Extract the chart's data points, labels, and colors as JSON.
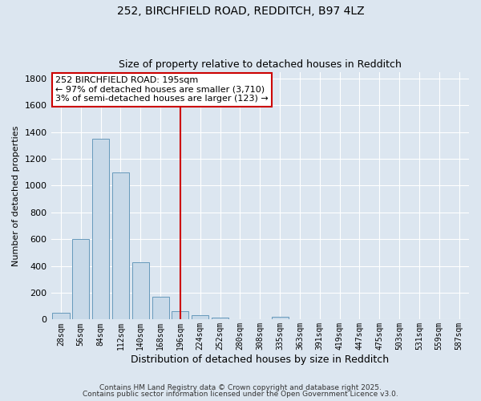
{
  "title1": "252, BIRCHFIELD ROAD, REDDITCH, B97 4LZ",
  "title2": "Size of property relative to detached houses in Redditch",
  "xlabel": "Distribution of detached houses by size in Redditch",
  "ylabel": "Number of detached properties",
  "annotation_line1": "252 BIRCHFIELD ROAD: 195sqm",
  "annotation_line2": "← 97% of detached houses are smaller (3,710)",
  "annotation_line3": "3% of semi-detached houses are larger (123) →",
  "footer1": "Contains HM Land Registry data © Crown copyright and database right 2025.",
  "footer2": "Contains public sector information licensed under the Open Government Licence v3.0.",
  "bins": [
    "28sqm",
    "56sqm",
    "84sqm",
    "112sqm",
    "140sqm",
    "168sqm",
    "196sqm",
    "224sqm",
    "252sqm",
    "280sqm",
    "308sqm",
    "335sqm",
    "363sqm",
    "391sqm",
    "419sqm",
    "447sqm",
    "475sqm",
    "503sqm",
    "531sqm",
    "559sqm",
    "587sqm"
  ],
  "values": [
    50,
    600,
    1350,
    1100,
    430,
    170,
    65,
    35,
    15,
    0,
    0,
    20,
    0,
    0,
    0,
    0,
    0,
    0,
    0,
    0,
    0
  ],
  "bar_color": "#c8d9e8",
  "bar_edge_color": "#6699bb",
  "ref_line_color": "#cc0000",
  "background_color": "#dce6f0",
  "plot_bg_color": "#dce6f0",
  "annotation_box_color": "#ffffff",
  "annotation_box_edge": "#cc0000",
  "ylim": [
    0,
    1850
  ],
  "yticks": [
    0,
    200,
    400,
    600,
    800,
    1000,
    1200,
    1400,
    1600,
    1800
  ]
}
